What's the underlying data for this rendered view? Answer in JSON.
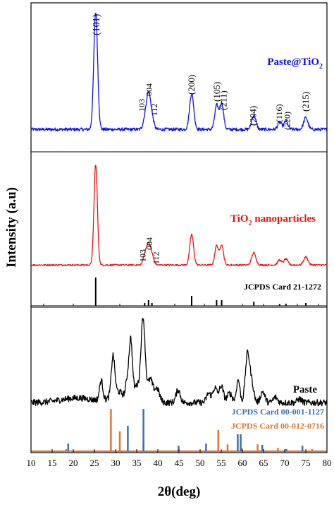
{
  "chart_data": {
    "type": "line",
    "xlabel": "2θ(deg)",
    "ylabel": "Intensity (a.u)",
    "xlim": [
      10,
      80
    ],
    "xticks": [
      10,
      15,
      20,
      25,
      30,
      35,
      40,
      45,
      50,
      55,
      60,
      65,
      70,
      75,
      80
    ],
    "colors": {
      "paste_tio2": "#1010ee",
      "tio2": "#ee1010",
      "paste": "#000000",
      "card_00_001_1127": "#3a6fb8",
      "card_00_012_0716": "#e0762a",
      "card_21_1272": "#000000"
    },
    "panels": [
      {
        "series": [
          {
            "name": "Paste@TiO",
            "name_sub": "2",
            "color": "#1010ee",
            "baseline": 0.04,
            "noise": 0.014,
            "peaks": [
              {
                "x": 25.3,
                "height": 1.0,
                "width": 0.45
              },
              {
                "x": 37.0,
                "height": 0.1,
                "width": 0.45
              },
              {
                "x": 37.8,
                "height": 0.28,
                "width": 0.45
              },
              {
                "x": 38.6,
                "height": 0.1,
                "width": 0.45
              },
              {
                "x": 48.0,
                "height": 0.3,
                "width": 0.5
              },
              {
                "x": 53.9,
                "height": 0.2,
                "width": 0.45
              },
              {
                "x": 55.1,
                "height": 0.22,
                "width": 0.45
              },
              {
                "x": 62.7,
                "height": 0.12,
                "width": 0.5
              },
              {
                "x": 68.8,
                "height": 0.06,
                "width": 0.45
              },
              {
                "x": 70.3,
                "height": 0.07,
                "width": 0.45
              },
              {
                "x": 75.0,
                "height": 0.1,
                "width": 0.5
              }
            ]
          }
        ],
        "annotations": [
          {
            "text": "(101)",
            "x": 25.5
          },
          {
            "text": "103",
            "x": 36.2
          },
          {
            "text": "004",
            "x": 37.9
          },
          {
            "text": "112",
            "x": 39.2
          },
          {
            "text": "(200)",
            "x": 48.0
          },
          {
            "text": "(105)",
            "x": 54.0
          },
          {
            "text": "(211)",
            "x": 55.6
          },
          {
            "text": "(204)",
            "x": 62.6
          },
          {
            "text": "(116)",
            "x": 68.7
          },
          {
            "text": "(220)",
            "x": 70.6
          },
          {
            "text": "(215)",
            "x": 75.0
          }
        ]
      },
      {
        "series": [
          {
            "name": "TiO",
            "name_sub": "2",
            "name_suffix": " nanoparticles",
            "color": "#ee1010",
            "baseline": 0.04,
            "noise": 0.008,
            "peaks": [
              {
                "x": 25.3,
                "height": 1.0,
                "width": 0.4
              },
              {
                "x": 37.0,
                "height": 0.1,
                "width": 0.45
              },
              {
                "x": 37.8,
                "height": 0.18,
                "width": 0.45
              },
              {
                "x": 38.6,
                "height": 0.09,
                "width": 0.45
              },
              {
                "x": 48.0,
                "height": 0.3,
                "width": 0.45
              },
              {
                "x": 53.9,
                "height": 0.19,
                "width": 0.42
              },
              {
                "x": 55.1,
                "height": 0.2,
                "width": 0.42
              },
              {
                "x": 62.7,
                "height": 0.12,
                "width": 0.5
              },
              {
                "x": 68.8,
                "height": 0.05,
                "width": 0.45
              },
              {
                "x": 70.3,
                "height": 0.06,
                "width": 0.45
              },
              {
                "x": 75.0,
                "height": 0.08,
                "width": 0.5
              }
            ]
          }
        ],
        "annotations": [
          {
            "text": "103",
            "x": 36.4
          },
          {
            "text": "004",
            "x": 38.0
          },
          {
            "text": "112",
            "x": 39.6
          }
        ],
        "reference_card": {
          "name": "JCPDS Card 21-1272",
          "color": "#000000",
          "lines": [
            {
              "x": 25.3,
              "intensity": 1.0
            },
            {
              "x": 36.9,
              "intensity": 0.1
            },
            {
              "x": 37.8,
              "intensity": 0.2
            },
            {
              "x": 38.6,
              "intensity": 0.1
            },
            {
              "x": 48.0,
              "intensity": 0.35
            },
            {
              "x": 53.9,
              "intensity": 0.2
            },
            {
              "x": 55.1,
              "intensity": 0.2
            },
            {
              "x": 62.7,
              "intensity": 0.14
            },
            {
              "x": 68.8,
              "intensity": 0.06
            },
            {
              "x": 70.3,
              "intensity": 0.07
            },
            {
              "x": 75.0,
              "intensity": 0.1
            }
          ]
        }
      },
      {
        "series": [
          {
            "name": "Paste",
            "color": "#000000",
            "baseline": 0.06,
            "noise": 0.035,
            "peaks": [
              {
                "x": 21.0,
                "height": 0.05,
                "width": 4.0
              },
              {
                "x": 26.6,
                "height": 0.22,
                "width": 0.4
              },
              {
                "x": 29.4,
                "height": 0.42,
                "width": 0.4
              },
              {
                "x": 30.5,
                "height": 0.12,
                "width": 1.5
              },
              {
                "x": 32.8,
                "height": 0.2,
                "width": 0.4
              },
              {
                "x": 33.6,
                "height": 0.65,
                "width": 0.4
              },
              {
                "x": 35.0,
                "height": 0.18,
                "width": 0.6
              },
              {
                "x": 36.5,
                "height": 0.92,
                "width": 0.5
              },
              {
                "x": 38.2,
                "height": 0.25,
                "width": 0.6
              },
              {
                "x": 39.8,
                "height": 0.15,
                "width": 0.6
              },
              {
                "x": 44.8,
                "height": 0.14,
                "width": 0.5
              },
              {
                "x": 52.0,
                "height": 0.1,
                "width": 0.5
              },
              {
                "x": 53.5,
                "height": 0.16,
                "width": 0.5
              },
              {
                "x": 55.0,
                "height": 0.18,
                "width": 0.5
              },
              {
                "x": 57.0,
                "height": 0.1,
                "width": 0.6
              },
              {
                "x": 59.0,
                "height": 0.25,
                "width": 0.4
              },
              {
                "x": 61.2,
                "height": 0.52,
                "width": 0.5
              },
              {
                "x": 62.2,
                "height": 0.2,
                "width": 0.5
              },
              {
                "x": 64.8,
                "height": 0.12,
                "width": 0.5
              },
              {
                "x": 67.8,
                "height": 0.06,
                "width": 0.5
              },
              {
                "x": 73.5,
                "height": 0.04,
                "width": 0.5
              }
            ]
          }
        ],
        "reference_cards": [
          {
            "name": "JCPDS Card 00-001-1127",
            "color": "#3a6fb8",
            "lines": [
              {
                "x": 18.8,
                "intensity": 0.18
              },
              {
                "x": 32.9,
                "intensity": 0.6
              },
              {
                "x": 36.6,
                "intensity": 1.0
              },
              {
                "x": 44.9,
                "intensity": 0.13
              },
              {
                "x": 51.4,
                "intensity": 0.18
              },
              {
                "x": 58.9,
                "intensity": 0.4
              },
              {
                "x": 59.6,
                "intensity": 0.4
              },
              {
                "x": 64.7,
                "intensity": 0.15
              },
              {
                "x": 70.4,
                "intensity": 0.05
              },
              {
                "x": 74.2,
                "intensity": 0.13
              }
            ]
          },
          {
            "name": "JCPDS Card 00-012-0716",
            "color": "#e0762a",
            "lines": [
              {
                "x": 18.3,
                "intensity": 0.05
              },
              {
                "x": 28.9,
                "intensity": 1.0
              },
              {
                "x": 31.0,
                "intensity": 0.47
              },
              {
                "x": 36.6,
                "intensity": 0.2
              },
              {
                "x": 54.3,
                "intensity": 0.5
              },
              {
                "x": 56.5,
                "intensity": 0.16
              },
              {
                "x": 59.9,
                "intensity": 0.07
              },
              {
                "x": 63.6,
                "intensity": 0.16
              },
              {
                "x": 68.4,
                "intensity": 0.08
              },
              {
                "x": 76.5,
                "intensity": 0.05
              }
            ]
          }
        ]
      }
    ]
  }
}
